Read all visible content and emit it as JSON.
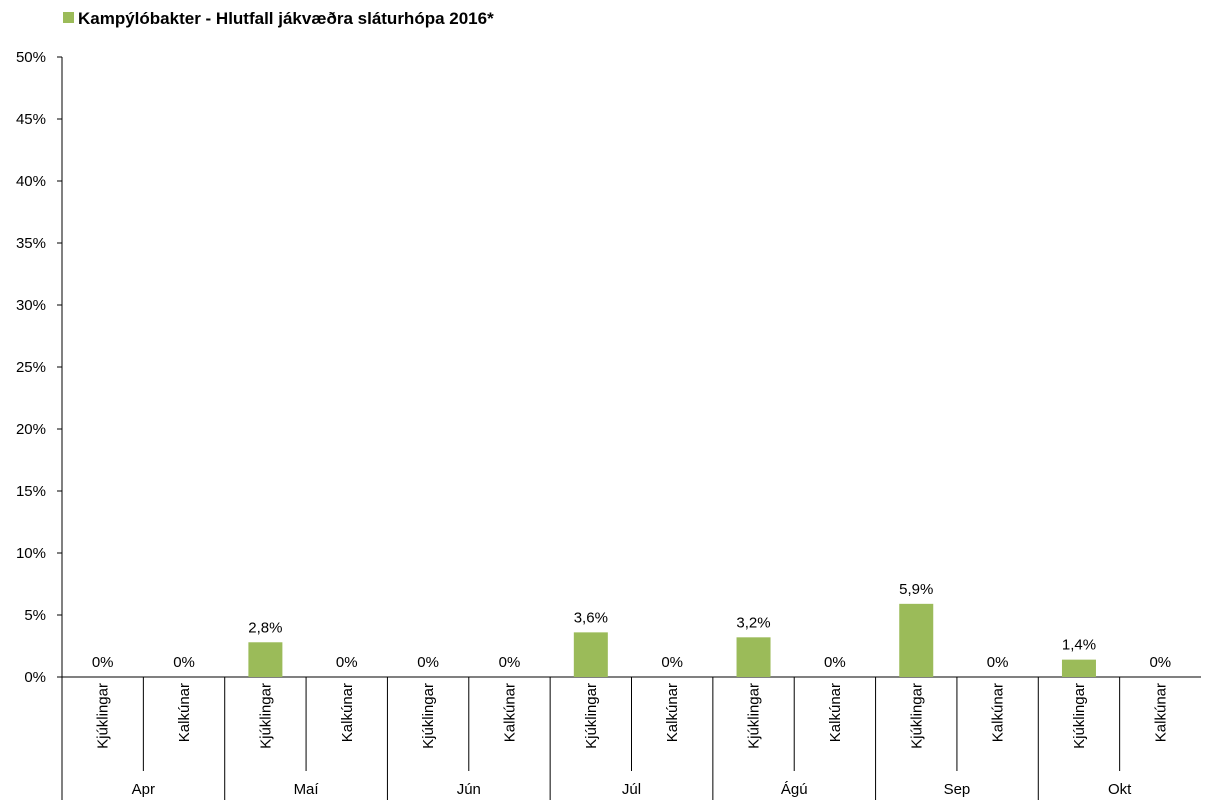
{
  "chart_data": {
    "type": "bar",
    "title": "Kampýlóbakter - Hlutfall jákvæðra sláturhópa 2016*",
    "legend_position": "top-left",
    "bar_color": "#9BBB59",
    "ylim": [
      0,
      50
    ],
    "yticks": [
      "0%",
      "5%",
      "10%",
      "15%",
      "20%",
      "25%",
      "30%",
      "35%",
      "40%",
      "45%",
      "50%"
    ],
    "groups": [
      "Apr",
      "Maí",
      "Jún",
      "Júl",
      "Ágú",
      "Sep",
      "Okt"
    ],
    "subcategories": [
      "Kjúklingar",
      "Kalkúnar"
    ],
    "values": [
      0,
      0,
      2.8,
      0,
      0,
      0,
      3.6,
      0,
      3.2,
      0,
      5.9,
      0,
      1.4,
      0
    ],
    "data_labels": [
      "0%",
      "0%",
      "2,8%",
      "0%",
      "0%",
      "0%",
      "3,6%",
      "0%",
      "3,2%",
      "0%",
      "5,9%",
      "0%",
      "1,4%",
      "0%"
    ],
    "grid": false
  }
}
